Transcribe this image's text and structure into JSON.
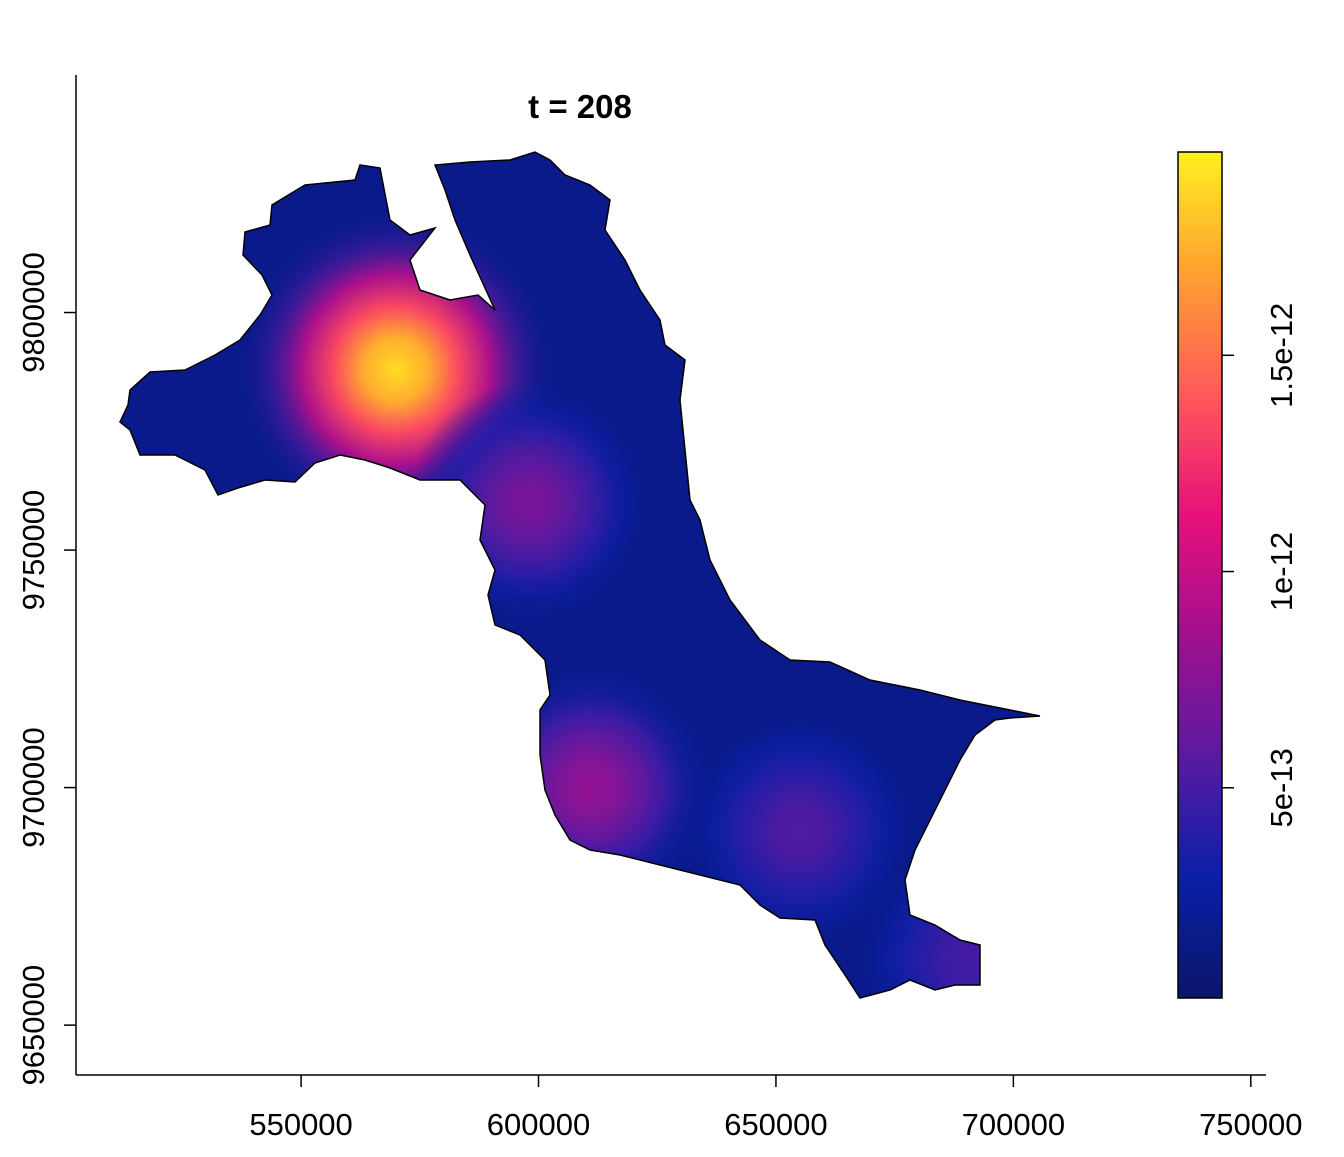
{
  "chart_data": {
    "type": "raster",
    "title": "t = 208",
    "xlim": [
      502600,
      753200
    ],
    "xticks": [
      550000,
      600000,
      650000,
      700000,
      750000
    ],
    "ylim": [
      9639500,
      9850000
    ],
    "yticks": [
      9650000,
      9700000,
      9750000,
      9800000
    ],
    "points": {
      "x": [
        570000,
        611000,
        655000,
        691000,
        598000
      ],
      "y": [
        9788000,
        9700000,
        9691000,
        9664000,
        9760000
      ],
      "values": [
        1.9e-12,
        8e-13,
        5.5e-13,
        5e-13,
        7e-13
      ]
    },
    "colorbar": {
      "zlim": [
        1.4e-14,
        1.97e-12
      ],
      "zticks": [
        5e-13,
        1e-12,
        1.5e-12
      ],
      "colors": [
        "#0b1668",
        "#0a1fa8",
        "#5a1aa0",
        "#a0108f",
        "#e8107a",
        "#ff5a5a",
        "#ffa030",
        "#fff020"
      ]
    }
  }
}
